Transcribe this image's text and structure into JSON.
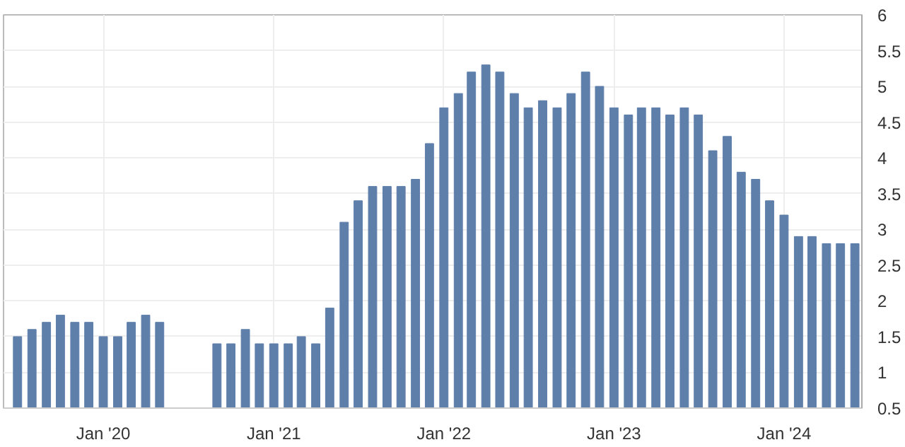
{
  "chart_data": {
    "type": "bar",
    "x": [
      "2019-07",
      "2019-08",
      "2019-09",
      "2019-10",
      "2019-11",
      "2019-12",
      "2020-01",
      "2020-02",
      "2020-03",
      "2020-04",
      "2020-05",
      "2020-06",
      "2020-07",
      "2020-08",
      "2020-09",
      "2020-10",
      "2020-11",
      "2020-12",
      "2021-01",
      "2021-02",
      "2021-03",
      "2021-04",
      "2021-05",
      "2021-06",
      "2021-07",
      "2021-08",
      "2021-09",
      "2021-10",
      "2021-11",
      "2021-12",
      "2022-01",
      "2022-02",
      "2022-03",
      "2022-04",
      "2022-05",
      "2022-06",
      "2022-07",
      "2022-08",
      "2022-09",
      "2022-10",
      "2022-11",
      "2022-12",
      "2023-01",
      "2023-02",
      "2023-03",
      "2023-04",
      "2023-05",
      "2023-06",
      "2023-07",
      "2023-08",
      "2023-09",
      "2023-10",
      "2023-11",
      "2023-12",
      "2024-01",
      "2024-02",
      "2024-03",
      "2024-04",
      "2024-05",
      "2024-06"
    ],
    "values": [
      1.5,
      1.6,
      1.7,
      1.8,
      1.7,
      1.7,
      1.5,
      1.5,
      1.7,
      1.8,
      1.7,
      null,
      null,
      null,
      1.4,
      1.4,
      1.6,
      1.4,
      1.4,
      1.4,
      1.5,
      1.4,
      1.9,
      3.1,
      3.4,
      3.6,
      3.6,
      3.6,
      3.7,
      4.2,
      4.7,
      4.9,
      5.2,
      5.3,
      5.2,
      4.9,
      4.7,
      4.8,
      4.7,
      4.9,
      5.2,
      5.0,
      4.7,
      4.6,
      4.7,
      4.7,
      4.6,
      4.7,
      4.6,
      4.1,
      4.3,
      3.8,
      3.7,
      3.4,
      3.2,
      2.9,
      2.9,
      2.8,
      2.8,
      2.8
    ],
    "color": "#5f7fab",
    "xlim": [
      "2019-06-01",
      "2024-06-16"
    ],
    "xticks": [
      {
        "value": "2020-01",
        "label": "Jan '20"
      },
      {
        "value": "2021-01",
        "label": "Jan '21"
      },
      {
        "value": "2022-01",
        "label": "Jan '22"
      },
      {
        "value": "2023-01",
        "label": "Jan '23"
      },
      {
        "value": "2024-01",
        "label": "Jan '24"
      }
    ],
    "ylim": [
      0.5,
      6
    ],
    "yticks": [
      0.5,
      1,
      1.5,
      2,
      2.5,
      3,
      3.5,
      4,
      4.5,
      5,
      5.5,
      6
    ],
    "grid": true
  }
}
